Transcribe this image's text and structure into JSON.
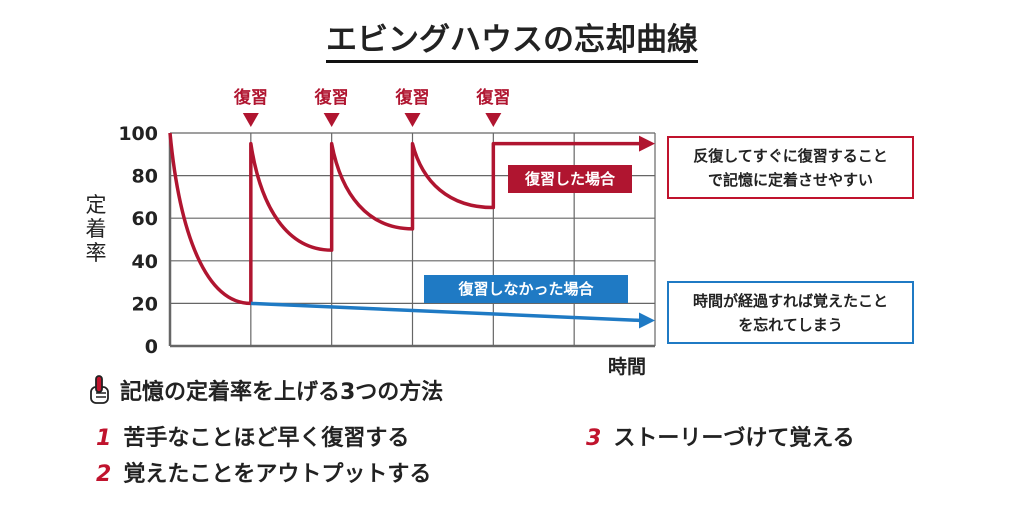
{
  "title": "エビングハウスの忘却曲線",
  "review_marker_label": "復習",
  "ylabel": "定着率",
  "xlabel": "時間",
  "red_tag": "復習した場合",
  "blue_tag": "復習しなかった場合",
  "red_callout": [
    "反復してすぐに復習すること",
    "で記憶に定着させやすい"
  ],
  "blue_callout": [
    "時間が経過すれば覚えたこと",
    "を忘れてしまう"
  ],
  "methods_heading": "記憶の定着率を上げる3つの方法",
  "methods": [
    {
      "num": "1",
      "text": "苦手なことほど早く復習する"
    },
    {
      "num": "2",
      "text": "覚えたことをアウトプットする"
    },
    {
      "num": "3",
      "text": "ストーリーづけて覚える"
    }
  ],
  "colors": {
    "red": "#b01530",
    "blue": "#1f7ac4",
    "grid": "#666666"
  },
  "chart_data": {
    "type": "line",
    "title": "エビングハウスの忘却曲線",
    "xlabel": "時間",
    "ylabel": "定着率",
    "ylim": [
      0,
      100
    ],
    "yticks": [
      0,
      20,
      40,
      60,
      80,
      100
    ],
    "xlim": [
      0,
      6
    ],
    "review_points": [
      1,
      2,
      3,
      4
    ],
    "grid": true,
    "series": [
      {
        "name": "復習した場合",
        "color": "#b01530",
        "segments": [
          {
            "x0": 0,
            "x1": 1,
            "y0": 100,
            "y1": 20
          },
          {
            "x0": 1,
            "x1": 2,
            "y0": 95,
            "y1": 45
          },
          {
            "x0": 2,
            "x1": 3,
            "y0": 95,
            "y1": 55
          },
          {
            "x0": 3,
            "x1": 4,
            "y0": 95,
            "y1": 65
          },
          {
            "x0": 4,
            "x1": 6,
            "y0": 95,
            "y1": 95
          }
        ]
      },
      {
        "name": "復習しなかった場合",
        "color": "#1f7ac4",
        "points": [
          [
            1,
            20
          ],
          [
            6,
            12
          ]
        ]
      }
    ]
  }
}
